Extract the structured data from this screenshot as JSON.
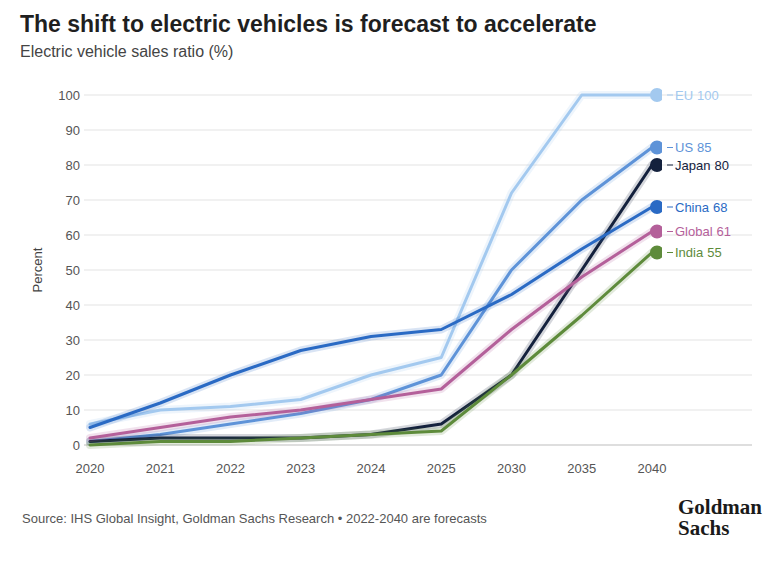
{
  "chart_data": {
    "type": "line",
    "title": "The shift to electric vehicles is forecast to accelerate",
    "subtitle": "Electric vehicle sales ratio (%)",
    "y_label": "Percent",
    "source": "Source: IHS Global Insight, Goldman Sachs Research • 2022-2040 are forecasts",
    "logo": [
      "Goldman",
      "Sachs"
    ],
    "categories": [
      "2020",
      "2021",
      "2022",
      "2023",
      "2024",
      "2025",
      "2030",
      "2035",
      "2040"
    ],
    "ylim": [
      0,
      100
    ],
    "yticks": [
      0,
      10,
      20,
      30,
      40,
      50,
      60,
      70,
      80,
      90,
      100
    ],
    "grid": true,
    "legend": "right",
    "marker": "end",
    "series": [
      {
        "name": "EU",
        "color": "#a3c9ef",
        "values": [
          6,
          10,
          11,
          13,
          20,
          25,
          72,
          100,
          100
        ]
      },
      {
        "name": "US",
        "color": "#5e93d8",
        "values": [
          1,
          3,
          6,
          9,
          13,
          20,
          50,
          70,
          85
        ]
      },
      {
        "name": "Japan",
        "color": "#14213d",
        "values": [
          1,
          2,
          2,
          2,
          3,
          6,
          20,
          50,
          80
        ]
      },
      {
        "name": "China",
        "color": "#2a6ac4",
        "values": [
          5,
          12,
          20,
          27,
          31,
          33,
          43,
          56,
          68
        ]
      },
      {
        "name": "Global",
        "color": "#b4609a",
        "values": [
          2,
          5,
          8,
          10,
          13,
          16,
          33,
          48,
          61
        ]
      },
      {
        "name": "India",
        "color": "#5e8b3b",
        "values": [
          0,
          1,
          1,
          2,
          3,
          4,
          20,
          37,
          55
        ]
      }
    ]
  }
}
